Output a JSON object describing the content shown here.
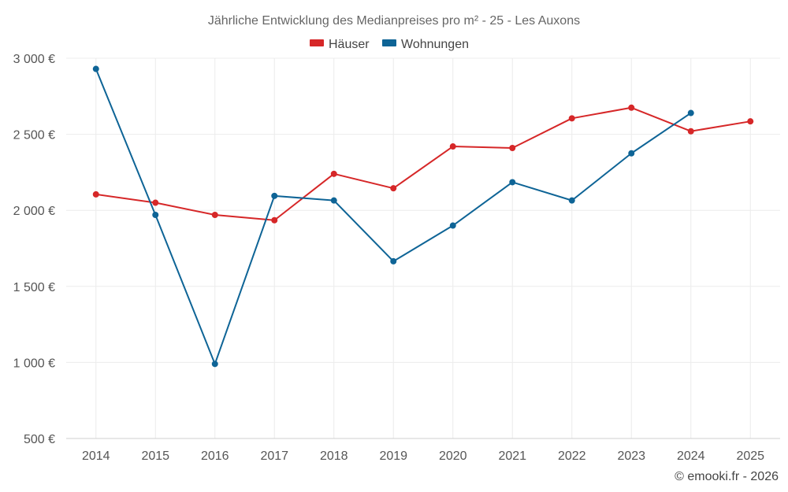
{
  "chart_data": {
    "type": "line",
    "title": "Jährliche Entwicklung des Medianpreises pro m² - 25 - Les Auxons",
    "categories": [
      "2014",
      "2015",
      "2016",
      "2017",
      "2018",
      "2019",
      "2020",
      "2021",
      "2022",
      "2023",
      "2024",
      "2025"
    ],
    "ylim": [
      500,
      3000
    ],
    "yticks": [
      500,
      1000,
      1500,
      2000,
      2500,
      3000
    ],
    "ytick_labels": [
      "500 €",
      "1 000 €",
      "1 500 €",
      "2 000 €",
      "2 500 €",
      "3 000 €"
    ],
    "legend_position": "top-center",
    "grid": true,
    "series": [
      {
        "name": "Häuser",
        "color": "#d62728",
        "values": [
          2105,
          2050,
          1970,
          1935,
          2240,
          2145,
          2420,
          2410,
          2605,
          2675,
          2520,
          2585
        ]
      },
      {
        "name": "Wohnungen",
        "color": "#0e6496",
        "values": [
          2930,
          1970,
          990,
          2095,
          2065,
          1665,
          1900,
          2185,
          2065,
          2375,
          2640,
          null
        ]
      }
    ]
  },
  "credit": "© emooki.fr - 2026"
}
